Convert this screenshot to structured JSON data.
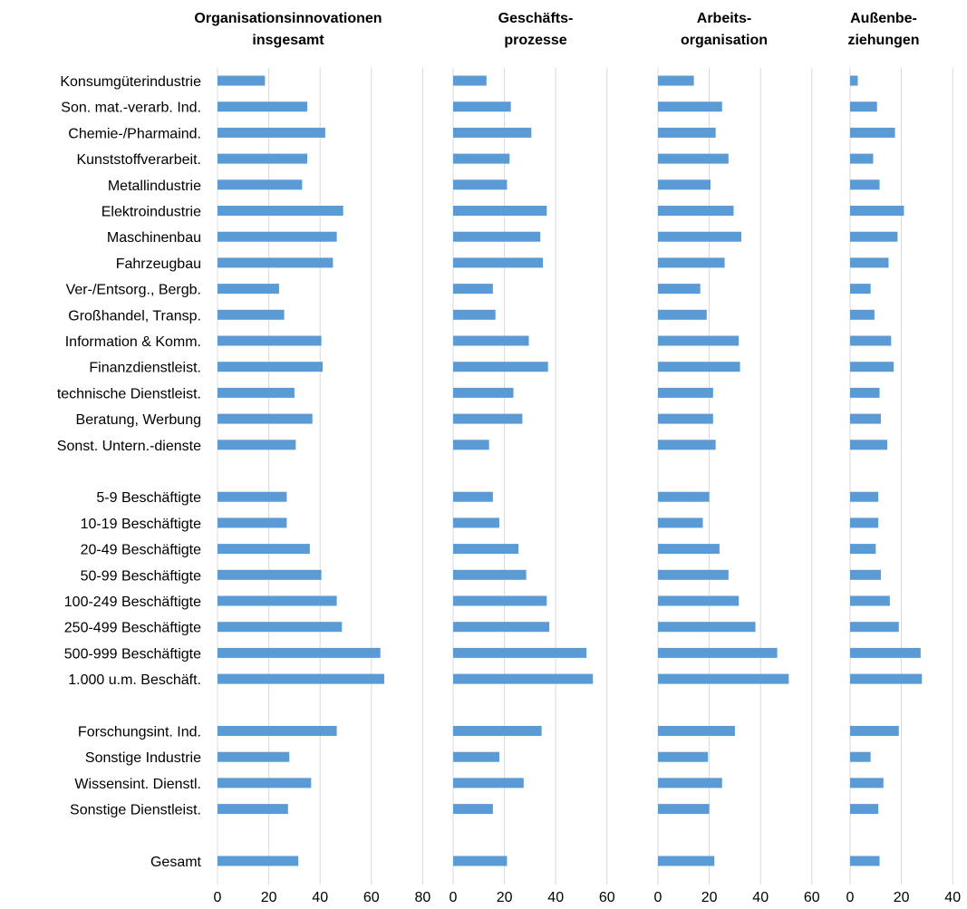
{
  "chart_data": {
    "type": "bar",
    "orientation": "horizontal",
    "bar_color": "#5b9bd5",
    "grid": true,
    "grid_color": "#d9d9d9",
    "categories": [
      "Konsumgüterindustrie",
      "Son. mat.-verarb. Ind.",
      "Chemie-/Pharmaind.",
      "Kunststoffverarbeit.",
      "Metallindustrie",
      "Elektroindustrie",
      "Maschinenbau",
      "Fahrzeugbau",
      "Ver-/Entsorg., Bergb.",
      "Großhandel, Transp.",
      "Information & Komm.",
      "Finanzdienstleist.",
      "technische Dienstleist.",
      "Beratung, Werbung",
      "Sonst. Untern.-dienste",
      "",
      "5-9 Beschäftigte",
      "10-19 Beschäftigte",
      "20-49 Beschäftigte",
      "50-99 Beschäftigte",
      "100-249 Beschäftigte",
      "250-499 Beschäftigte",
      "500-999 Beschäftigte",
      "1.000 u.m. Beschäft.",
      "",
      "Forschungsint. Ind.",
      "Sonstige Industrie",
      "Wissensint. Dienstl.",
      "Sonstige Dienstleist.",
      "",
      "Gesamt"
    ],
    "panels": [
      {
        "title_lines": [
          "Organisationsinnovationen",
          "insgesamt"
        ],
        "xlim": [
          0,
          80
        ],
        "ticks": [
          "0",
          "20",
          "40",
          "60",
          "80"
        ],
        "values": [
          18.5,
          35,
          42,
          35,
          33,
          49,
          46.5,
          45,
          24,
          26,
          40.5,
          41,
          30,
          37,
          30.5,
          null,
          27,
          27,
          36,
          40.5,
          46.5,
          48.5,
          63.5,
          65,
          null,
          46.5,
          28,
          36.5,
          27.5,
          null,
          31.5
        ]
      },
      {
        "title_lines": [
          "Geschäfts-",
          "prozesse"
        ],
        "xlim": [
          0,
          60
        ],
        "ticks": [
          "0",
          "20",
          "40",
          "60"
        ],
        "values": [
          13,
          22.5,
          30.5,
          22,
          21,
          36.5,
          34,
          35,
          15.5,
          16.5,
          29.5,
          37,
          23.5,
          27,
          14,
          null,
          15.5,
          18,
          25.5,
          28.5,
          36.5,
          37.5,
          52,
          54.5,
          null,
          34.5,
          18,
          27.5,
          15.5,
          null,
          21
        ]
      },
      {
        "title_lines": [
          "Arbeits-",
          "organisation"
        ],
        "xlim": [
          0,
          60
        ],
        "ticks": [
          "0",
          "20",
          "40",
          "60"
        ],
        "values": [
          14,
          25,
          22.5,
          27.5,
          20.5,
          29.5,
          32.5,
          26,
          16.5,
          19,
          31.5,
          32,
          21.5,
          21.5,
          22.5,
          null,
          20,
          17.5,
          24,
          27.5,
          31.5,
          38,
          46.5,
          51,
          null,
          30,
          19.5,
          25,
          20,
          null,
          22
        ]
      },
      {
        "title_lines": [
          "Außenbe-",
          "ziehungen"
        ],
        "xlim": [
          0,
          40
        ],
        "ticks": [
          "0",
          "20",
          "40"
        ],
        "values": [
          3,
          10.5,
          17.5,
          9,
          11.5,
          21,
          18.5,
          15,
          8,
          9.5,
          16,
          17,
          11.5,
          12,
          14.5,
          null,
          11,
          11,
          10,
          12,
          15.5,
          19,
          27.5,
          28,
          null,
          19,
          8,
          13,
          11,
          null,
          11.5
        ]
      }
    ]
  }
}
